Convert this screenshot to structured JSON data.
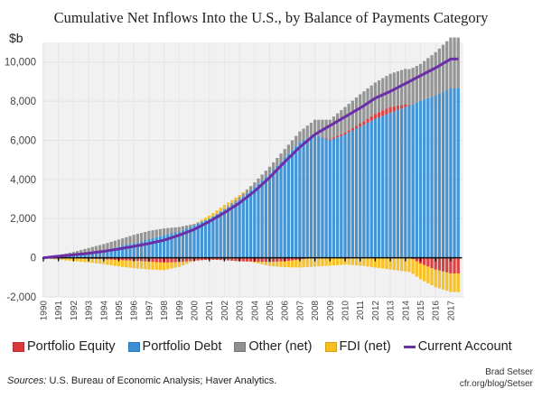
{
  "title": "Cumulative Net Inflows Into the U.S., by Balance of Payments Category",
  "unit_label": "$b",
  "legend": [
    {
      "label": "Portfolio Equity",
      "color": "#d8383a",
      "kind": "bar"
    },
    {
      "label": "Portfolio Debt",
      "color": "#3a8fd4",
      "kind": "bar"
    },
    {
      "label": "Other (net)",
      "color": "#8f8f8f",
      "kind": "bar"
    },
    {
      "label": "FDI (net)",
      "color": "#f7be20",
      "kind": "bar"
    },
    {
      "label": "Current Account",
      "color": "#6a2fa8",
      "kind": "line"
    }
  ],
  "sources_prefix": "Sources:",
  "sources_text": " U.S. Bureau of Economic Analysis; Haver Analytics.",
  "credit_line1": "Brad Setser",
  "credit_line2": "cfr.org/blog/Setser",
  "chart_data": {
    "type": "bar",
    "stacked": true,
    "title": "Cumulative Net Inflows Into the U.S., by Balance of Payments Category",
    "xlabel": "",
    "ylabel": "$b",
    "ylim": [
      -2000,
      11000
    ],
    "yticks": [
      -2000,
      0,
      2000,
      4000,
      6000,
      8000,
      10000
    ],
    "ytick_labels": [
      "-2,000",
      "0",
      "2,000",
      "4,000",
      "6,000",
      "8,000",
      "10,000"
    ],
    "grid": true,
    "legend_position": "bottom",
    "categories": [
      "1990",
      "1991",
      "1992",
      "1993",
      "1994",
      "1995",
      "1996",
      "1997",
      "1998",
      "1999",
      "2000",
      "2001",
      "2002",
      "2003",
      "2004",
      "2005",
      "2006",
      "2007",
      "2008",
      "2009",
      "2010",
      "2011",
      "2012",
      "2013",
      "2014",
      "2015",
      "2016",
      "2017"
    ],
    "series": [
      {
        "name": "Portfolio Equity",
        "values": [
          0,
          -20,
          -40,
          -60,
          -80,
          -120,
          -150,
          -200,
          -250,
          -220,
          -150,
          -100,
          -120,
          -180,
          -200,
          -220,
          -180,
          -100,
          0,
          50,
          100,
          150,
          250,
          300,
          150,
          -300,
          -600,
          -800
        ]
      },
      {
        "name": "Portfolio Debt",
        "values": [
          0,
          60,
          150,
          250,
          380,
          550,
          750,
          950,
          1150,
          1350,
          1650,
          2000,
          2450,
          2950,
          3600,
          4300,
          5100,
          5900,
          6300,
          6000,
          6300,
          6700,
          7100,
          7400,
          7700,
          8000,
          8300,
          8650
        ]
      },
      {
        "name": "Other (net)",
        "values": [
          20,
          80,
          150,
          250,
          320,
          380,
          420,
          420,
          350,
          220,
          80,
          0,
          50,
          150,
          250,
          350,
          450,
          550,
          750,
          1000,
          1300,
          1500,
          1600,
          1700,
          1800,
          1900,
          2200,
          2600
        ]
      },
      {
        "name": "FDI (net)",
        "values": [
          -30,
          -80,
          -130,
          -180,
          -250,
          -320,
          -380,
          -400,
          -380,
          -250,
          0,
          150,
          200,
          100,
          -50,
          -200,
          -300,
          -400,
          -450,
          -400,
          -350,
          -400,
          -500,
          -600,
          -700,
          -800,
          -900,
          -950
        ]
      }
    ],
    "line_series": {
      "name": "Current Account",
      "values": [
        0,
        80,
        150,
        230,
        330,
        450,
        580,
        730,
        900,
        1150,
        1450,
        1850,
        2300,
        2800,
        3400,
        4100,
        4900,
        5650,
        6300,
        6750,
        7200,
        7650,
        8150,
        8500,
        8900,
        9300,
        9700,
        10150
      ]
    }
  }
}
